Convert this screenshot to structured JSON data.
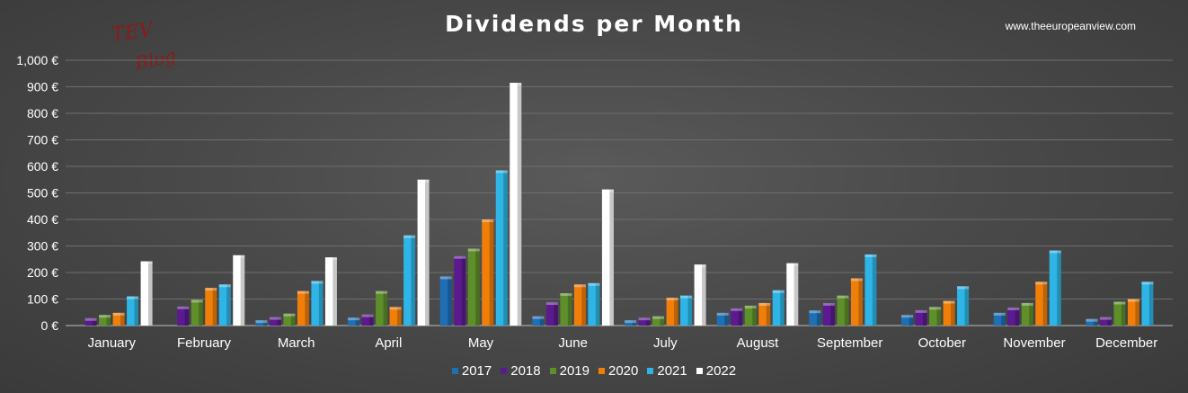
{
  "site": "www.theeuropeanview.com",
  "logo": {
    "line1": "TEV",
    "line2": "Blog"
  },
  "chart_data": {
    "type": "bar",
    "title": "Dividends per Month",
    "xlabel": "",
    "ylabel": "",
    "ylim": [
      0,
      1000
    ],
    "yticks": [
      "0 €",
      "100 €",
      "200 €",
      "300 €",
      "400 €",
      "500 €",
      "600 €",
      "700 €",
      "800 €",
      "900 €",
      "1,000 €"
    ],
    "ytick_values": [
      0,
      100,
      200,
      300,
      400,
      500,
      600,
      700,
      800,
      900,
      1000
    ],
    "grid": true,
    "legend_position": "bottom",
    "categories": [
      "January",
      "February",
      "March",
      "April",
      "May",
      "June",
      "July",
      "August",
      "September",
      "October",
      "November",
      "December"
    ],
    "series": [
      {
        "name": "2017",
        "color": "#1f6fb5",
        "values": [
          null,
          null,
          20,
          30,
          185,
          35,
          20,
          48,
          57,
          40,
          48,
          25
        ]
      },
      {
        "name": "2018",
        "color": "#5b1a8f",
        "values": [
          28,
          72,
          32,
          42,
          262,
          88,
          30,
          65,
          85,
          58,
          68,
          32
        ]
      },
      {
        "name": "2019",
        "color": "#5e8f2a",
        "values": [
          40,
          97,
          45,
          130,
          290,
          122,
          35,
          75,
          113,
          70,
          85,
          90
        ]
      },
      {
        "name": "2020",
        "color": "#f07f09",
        "values": [
          48,
          142,
          130,
          70,
          400,
          155,
          105,
          85,
          178,
          93,
          165,
          100
        ]
      },
      {
        "name": "2021",
        "color": "#2eb5e6",
        "values": [
          110,
          155,
          168,
          340,
          585,
          160,
          113,
          133,
          268,
          148,
          283,
          165
        ]
      },
      {
        "name": "2022",
        "color": "#ffffff",
        "values": [
          242,
          265,
          257,
          550,
          915,
          513,
          230,
          235,
          null,
          null,
          null,
          null
        ]
      }
    ]
  }
}
